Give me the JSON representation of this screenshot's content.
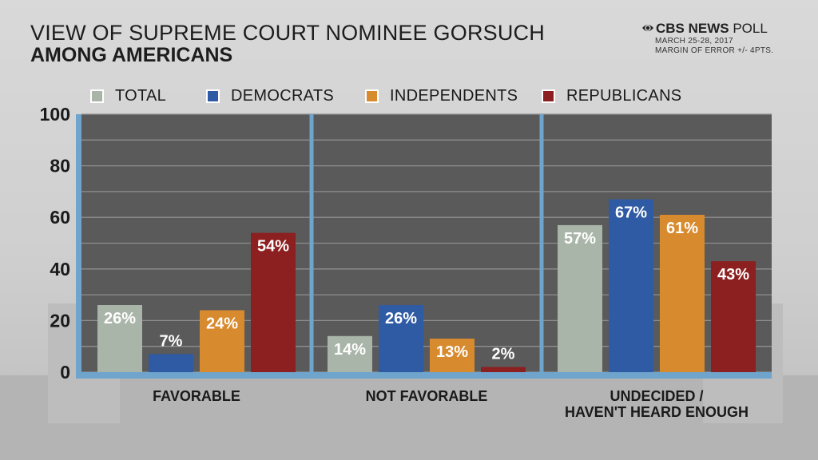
{
  "header": {
    "title_line1": "VIEW OF SUPREME COURT NOMINEE GORSUCH",
    "title_line2": "AMONG AMERICANS"
  },
  "brand": {
    "name_bold": "CBS NEWS",
    "name_rest": " POLL",
    "date": "MARCH 25-28, 2017",
    "margin": "MARGIN OF ERROR +/- 4PTS.",
    "icon": "cbs-eye-icon"
  },
  "colors": {
    "total": "#a9b5a8",
    "democrats": "#2f5aa4",
    "independents": "#d88a2f",
    "republicans": "#8c1f1f",
    "plot_bg": "#5a5a5a",
    "axis": "#6fa4cc"
  },
  "chart_data": {
    "type": "bar",
    "title": "VIEW OF SUPREME COURT NOMINEE GORSUCH AMONG AMERICANS",
    "categories": [
      "FAVORABLE",
      "NOT FAVORABLE",
      "UNDECIDED / HAVEN'T HEARD ENOUGH"
    ],
    "category_lines": [
      [
        "FAVORABLE"
      ],
      [
        "NOT FAVORABLE"
      ],
      [
        "UNDECIDED /",
        "HAVEN'T HEARD ENOUGH"
      ]
    ],
    "series": [
      {
        "name": "TOTAL",
        "values": [
          26,
          14,
          57
        ],
        "labels": [
          "26%",
          "14%",
          "57%"
        ]
      },
      {
        "name": "DEMOCRATS",
        "values": [
          7,
          26,
          67
        ],
        "labels": [
          "7%",
          "26%",
          "67%"
        ]
      },
      {
        "name": "INDEPENDENTS",
        "values": [
          24,
          13,
          61
        ],
        "labels": [
          "24%",
          "13%",
          "61%"
        ]
      },
      {
        "name": "REPUBLICANS",
        "values": [
          54,
          2,
          43
        ],
        "labels": [
          "54%",
          "2%",
          "43%"
        ]
      }
    ],
    "ylim": [
      0,
      100
    ],
    "yticks": [
      0,
      20,
      40,
      60,
      80,
      100
    ],
    "grid": true,
    "legend": "top"
  }
}
